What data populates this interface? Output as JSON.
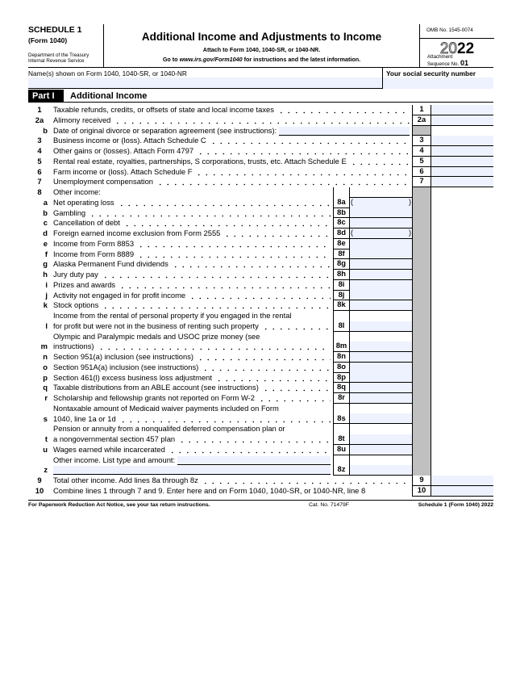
{
  "header": {
    "schedule": "SCHEDULE 1",
    "form": "(Form 1040)",
    "dept1": "Department of the Treasury",
    "dept2": "Internal Revenue Service",
    "title": "Additional Income and Adjustments to Income",
    "attach": "Attach to Form 1040, 1040-SR, or 1040-NR.",
    "goto_pre": "Go to ",
    "goto_url": "www.irs.gov/Form1040",
    "goto_post": " for instructions and the latest information.",
    "omb": "OMB No. 1545-0074",
    "year_outline": "20",
    "year_bold": "22",
    "attachment": "Attachment",
    "sequence": "Sequence No.",
    "sequence_no": "01"
  },
  "name_row": {
    "name_label": "Name(s) shown on Form 1040, 1040-SR, or 1040-NR",
    "name_value": "",
    "ssn_label": "Your social security number",
    "ssn_value": ""
  },
  "part": {
    "label": "Part I",
    "title": "Additional Income"
  },
  "lines": [
    {
      "num": "1",
      "text": [
        "Taxable refunds, credits, or offsets of state and local income taxes"
      ],
      "dots": true,
      "type": "main",
      "label": "1"
    },
    {
      "num": "2a",
      "text": [
        "Alimony received"
      ],
      "dots": true,
      "type": "main",
      "label": "2a"
    },
    {
      "num": "b",
      "let": true,
      "text": [
        "Date of original divorce or separation agreement (see instructions):"
      ],
      "type": "date"
    },
    {
      "num": "3",
      "text": [
        "Business income or (loss). Attach Schedule C"
      ],
      "dots": true,
      "type": "main",
      "label": "3"
    },
    {
      "num": "4",
      "text": [
        "Other gains or (losses). Attach Form 4797"
      ],
      "dots": true,
      "type": "main",
      "label": "4"
    },
    {
      "num": "5",
      "text": [
        "Rental real estate, royalties, partnerships, S corporations, trusts, etc. Attach Schedule E"
      ],
      "dots": true,
      "type": "main",
      "label": "5"
    },
    {
      "num": "6",
      "text": [
        "Farm income or (loss). Attach Schedule F"
      ],
      "dots": true,
      "type": "main",
      "label": "6"
    },
    {
      "num": "7",
      "text": [
        "Unemployment compensation"
      ],
      "dots": true,
      "type": "main",
      "label": "7"
    },
    {
      "num": "8",
      "text": [
        "Other income:"
      ],
      "type": "head8"
    },
    {
      "num": "a",
      "let": true,
      "text": [
        "Net operating loss"
      ],
      "dots": true,
      "type": "inner",
      "label": "8a",
      "paren": true
    },
    {
      "num": "b",
      "let": true,
      "text": [
        "Gambling"
      ],
      "dots": true,
      "type": "inner",
      "label": "8b"
    },
    {
      "num": "c",
      "let": true,
      "text": [
        "Cancellation of debt"
      ],
      "dots": true,
      "type": "inner",
      "label": "8c"
    },
    {
      "num": "d",
      "let": true,
      "text": [
        "Foreign earned income exclusion from Form 2555"
      ],
      "dots": true,
      "type": "inner",
      "label": "8d",
      "paren": true
    },
    {
      "num": "e",
      "let": true,
      "text": [
        "Income from Form 8853"
      ],
      "dots": true,
      "type": "inner",
      "label": "8e"
    },
    {
      "num": "f",
      "let": true,
      "text": [
        "Income from Form 8889"
      ],
      "dots": true,
      "type": "inner",
      "label": "8f"
    },
    {
      "num": "g",
      "let": true,
      "text": [
        "Alaska Permanent Fund dividends"
      ],
      "dots": true,
      "type": "inner",
      "label": "8g"
    },
    {
      "num": "h",
      "let": true,
      "text": [
        "Jury duty pay"
      ],
      "dots": true,
      "type": "inner",
      "label": "8h"
    },
    {
      "num": "i",
      "let": true,
      "text": [
        "Prizes and awards"
      ],
      "dots": true,
      "type": "inner",
      "label": "8i"
    },
    {
      "num": "j",
      "let": true,
      "text": [
        "Activity not engaged in for profit income"
      ],
      "dots": true,
      "type": "inner",
      "label": "8j"
    },
    {
      "num": "k",
      "let": true,
      "text": [
        "Stock options"
      ],
      "dots": true,
      "type": "inner",
      "label": "8k"
    },
    {
      "num": "l",
      "let": true,
      "text": [
        "Income from the rental of personal property if you engaged in the rental",
        "for profit but were not in the business of renting such property"
      ],
      "dots": true,
      "type": "inner",
      "label": "8l"
    },
    {
      "num": "m",
      "let": true,
      "text": [
        "Olympic and Paralympic medals and USOC prize money (see",
        "instructions)"
      ],
      "dots": true,
      "type": "inner",
      "label": "8m"
    },
    {
      "num": "n",
      "let": true,
      "text": [
        "Section 951(a) inclusion (see instructions)"
      ],
      "dots": true,
      "type": "inner",
      "label": "8n"
    },
    {
      "num": "o",
      "let": true,
      "text": [
        "Section 951A(a) inclusion (see instructions)"
      ],
      "dots": true,
      "type": "inner",
      "label": "8o"
    },
    {
      "num": "p",
      "let": true,
      "text": [
        "Section 461(l) excess business loss adjustment"
      ],
      "dots": true,
      "type": "inner",
      "label": "8p"
    },
    {
      "num": "q",
      "let": true,
      "text": [
        "Taxable distributions from an ABLE account (see instructions)"
      ],
      "dots": true,
      "type": "inner",
      "label": "8q"
    },
    {
      "num": "r",
      "let": true,
      "text": [
        "Scholarship and fellowship grants not reported on Form W-2"
      ],
      "dots": true,
      "type": "inner",
      "label": "8r"
    },
    {
      "num": "s",
      "let": true,
      "text": [
        "Nontaxable amount of Medicaid waiver payments included on Form",
        "1040, line 1a or 1d"
      ],
      "dots": true,
      "type": "inner",
      "label": "8s"
    },
    {
      "num": "t",
      "let": true,
      "text": [
        "Pension or annuity from a nonqualifed deferred compensation plan or",
        "a nongovernmental section 457 plan"
      ],
      "dots": true,
      "type": "inner",
      "label": "8t"
    },
    {
      "num": "u",
      "let": true,
      "text": [
        "Wages earned while incarcerated"
      ],
      "dots": true,
      "type": "inner",
      "label": "8u"
    },
    {
      "num": "z",
      "let": true,
      "text": [
        "Other income. List type and amount:",
        ""
      ],
      "type": "inner",
      "label": "8z",
      "other": true
    },
    {
      "num": "9",
      "text": [
        "Total other income. Add lines 8a through 8z"
      ],
      "dots": true,
      "type": "main",
      "label": "9"
    },
    {
      "num": "10",
      "text": [
        "Combine lines 1 through 7 and 9. Enter here and on Form 1040, 1040-SR, or 1040-NR, line 8"
      ],
      "type": "main",
      "label": "10"
    }
  ],
  "footer": {
    "notice": "For Paperwork Reduction Act Notice, see your tax return instructions.",
    "cat": "Cat. No. 71479F",
    "form": "Schedule 1 (Form 1040) 2022"
  },
  "colors": {
    "field": "#eef2ff",
    "shade": "#c0c0c0"
  }
}
